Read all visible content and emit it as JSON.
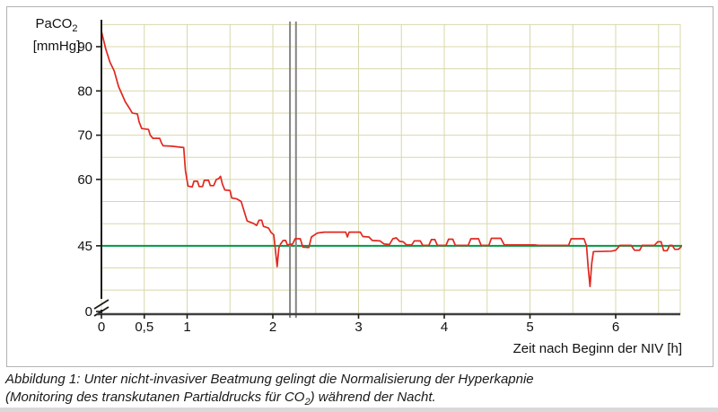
{
  "figure": {
    "caption_line1": "Abbildung 1: Unter nicht-invasiver Beatmung gelingt die Normalisierung der Hyperkapnie",
    "caption_line2_pre": "(Monitoring des transkutanen Partialdrucks für CO",
    "caption_line2_sub": "2",
    "caption_line2_post": ") während der Nacht."
  },
  "colors": {
    "grid": "#d8d8ab",
    "axis": "#1c1c1c",
    "axis_x": "#3f3f3f",
    "text": "#111111",
    "series_red": "#e12820",
    "threshold_green": "#009944",
    "event_marker_gray": "#858585",
    "box_border": "#b2b2b2"
  },
  "chart_data": {
    "type": "line",
    "title": "",
    "ylabel_main": "PaCO",
    "ylabel_sub": "2",
    "ylabel_unit": "[mmHg]",
    "xlabel": "Zeit nach Beginn der NIV [h]",
    "x_unit": "h",
    "y_unit": "mmHg",
    "xlim": [
      0,
      6.76
    ],
    "ylim_visible": [
      35,
      95
    ],
    "y_axis_break": {
      "between": [
        0,
        35
      ]
    },
    "grid": "on",
    "legend": "none",
    "x_ticks": [
      {
        "t": 0,
        "label": "0"
      },
      {
        "t": 0.5,
        "label": "0,5"
      },
      {
        "t": 1,
        "label": "1"
      },
      {
        "t": 2,
        "label": "2"
      },
      {
        "t": 3,
        "label": "3"
      },
      {
        "t": 4,
        "label": "4"
      },
      {
        "t": 5,
        "label": "5"
      },
      {
        "t": 6,
        "label": "6"
      }
    ],
    "y_ticks": [
      {
        "v": 90,
        "label": "90"
      },
      {
        "v": 80,
        "label": "80"
      },
      {
        "v": 70,
        "label": "70"
      },
      {
        "v": 60,
        "label": "60"
      },
      {
        "v": 45,
        "label": "45"
      },
      {
        "v": 0,
        "label": "0",
        "at_axis": true
      }
    ],
    "threshold": {
      "value": 45,
      "color": "#009944"
    },
    "event_marker": {
      "type": "double-vertical-line",
      "t": [
        2.2,
        2.27
      ],
      "color": "#858585"
    },
    "series": [
      {
        "name": "PaCO2 transkutan",
        "color": "#e12820",
        "points": [
          [
            0,
            93.5
          ],
          [
            0.05,
            89.5
          ],
          [
            0.1,
            86.5
          ],
          [
            0.15,
            84.5
          ],
          [
            0.2,
            81
          ],
          [
            0.28,
            77.5
          ],
          [
            0.33,
            76
          ],
          [
            0.36,
            75
          ],
          [
            0.42,
            74.8
          ],
          [
            0.44,
            73
          ],
          [
            0.47,
            71.5
          ],
          [
            0.55,
            71.3
          ],
          [
            0.57,
            70
          ],
          [
            0.6,
            69.3
          ],
          [
            0.68,
            69.3
          ],
          [
            0.7,
            68.3
          ],
          [
            0.72,
            67.6
          ],
          [
            0.82,
            67.5
          ],
          [
            0.96,
            67.2
          ],
          [
            0.98,
            62
          ],
          [
            1.01,
            58.5
          ],
          [
            1.06,
            58.3
          ],
          [
            1.08,
            59.6
          ],
          [
            1.12,
            59.6
          ],
          [
            1.14,
            58.4
          ],
          [
            1.18,
            58.4
          ],
          [
            1.2,
            59.8
          ],
          [
            1.25,
            59.8
          ],
          [
            1.27,
            58.6
          ],
          [
            1.31,
            58.6
          ],
          [
            1.34,
            60
          ],
          [
            1.37,
            60.2
          ],
          [
            1.39,
            60.7
          ],
          [
            1.41,
            59
          ],
          [
            1.44,
            57.6
          ],
          [
            1.5,
            57.5
          ],
          [
            1.52,
            55.8
          ],
          [
            1.58,
            55.6
          ],
          [
            1.63,
            55
          ],
          [
            1.67,
            52.5
          ],
          [
            1.7,
            50.6
          ],
          [
            1.78,
            50
          ],
          [
            1.81,
            49.6
          ],
          [
            1.84,
            50.8
          ],
          [
            1.87,
            50.8
          ],
          [
            1.89,
            49.4
          ],
          [
            1.95,
            49
          ],
          [
            1.98,
            48
          ],
          [
            2.01,
            47.5
          ],
          [
            2.03,
            44
          ],
          [
            2.05,
            40.3
          ],
          [
            2.07,
            44.5
          ],
          [
            2.09,
            45.4
          ],
          [
            2.12,
            46.2
          ],
          [
            2.15,
            46.2
          ],
          [
            2.17,
            45.2
          ],
          [
            2.2,
            45.3
          ],
          [
            2.23,
            45.4
          ],
          [
            2.26,
            46.6
          ],
          [
            2.32,
            46.6
          ],
          [
            2.35,
            44.7
          ],
          [
            2.42,
            44.6
          ],
          [
            2.45,
            47
          ],
          [
            2.52,
            47.9
          ],
          [
            2.6,
            48.1
          ],
          [
            2.85,
            48.1
          ],
          [
            2.87,
            47
          ],
          [
            2.89,
            48.1
          ],
          [
            3.02,
            48.1
          ],
          [
            3.05,
            47.1
          ],
          [
            3.12,
            47
          ],
          [
            3.16,
            46.2
          ],
          [
            3.25,
            46.1
          ],
          [
            3.3,
            45.4
          ],
          [
            3.36,
            45.3
          ],
          [
            3.4,
            46.6
          ],
          [
            3.44,
            46.8
          ],
          [
            3.48,
            46
          ],
          [
            3.52,
            45.9
          ],
          [
            3.56,
            45.2
          ],
          [
            3.62,
            45.2
          ],
          [
            3.65,
            46.1
          ],
          [
            3.72,
            46.1
          ],
          [
            3.75,
            45.1
          ],
          [
            3.82,
            45.1
          ],
          [
            3.85,
            46.4
          ],
          [
            3.89,
            46.4
          ],
          [
            3.92,
            45.1
          ],
          [
            4.02,
            45.1
          ],
          [
            4.05,
            46.5
          ],
          [
            4.1,
            46.5
          ],
          [
            4.13,
            45.1
          ],
          [
            4.28,
            45.1
          ],
          [
            4.31,
            46.6
          ],
          [
            4.4,
            46.6
          ],
          [
            4.43,
            45.1
          ],
          [
            4.52,
            45.1
          ],
          [
            4.55,
            46.7
          ],
          [
            4.66,
            46.7
          ],
          [
            4.7,
            45.2
          ],
          [
            4.8,
            45.2
          ],
          [
            5.05,
            45.2
          ],
          [
            5.1,
            45.1
          ],
          [
            5.45,
            45.1
          ],
          [
            5.48,
            46.6
          ],
          [
            5.63,
            46.6
          ],
          [
            5.66,
            45
          ],
          [
            5.68,
            40
          ],
          [
            5.7,
            35.8
          ],
          [
            5.72,
            41
          ],
          [
            5.74,
            43.7
          ],
          [
            5.95,
            43.8
          ],
          [
            6,
            44
          ],
          [
            6.05,
            45.1
          ],
          [
            6.18,
            45.1
          ],
          [
            6.22,
            44
          ],
          [
            6.28,
            44
          ],
          [
            6.31,
            45.1
          ],
          [
            6.45,
            45.1
          ],
          [
            6.49,
            45.9
          ],
          [
            6.53,
            45.9
          ],
          [
            6.56,
            43.9
          ],
          [
            6.6,
            43.9
          ],
          [
            6.63,
            45.1
          ],
          [
            6.66,
            45.1
          ],
          [
            6.69,
            44.2
          ],
          [
            6.73,
            44.2
          ],
          [
            6.76,
            44.7
          ]
        ]
      }
    ]
  }
}
